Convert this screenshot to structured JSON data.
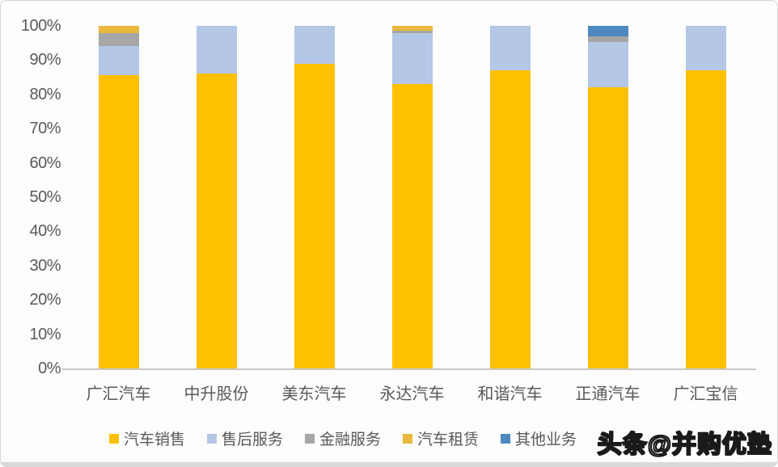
{
  "watermark": "头条@并购优塾",
  "chart_data": {
    "type": "bar",
    "stacked": true,
    "percent_stacked": true,
    "title": "",
    "xlabel": "",
    "ylabel": "",
    "ylim": [
      0,
      100
    ],
    "grid": false,
    "legend_position": "bottom",
    "axis_line_color": "#c7c7c7",
    "label_color": "#595959",
    "categories": [
      "广汇汽车",
      "中升股份",
      "美东汽车",
      "永达汽车",
      "和谐汽车",
      "正通汽车",
      "广汇宝信"
    ],
    "y_ticks": [
      "0%",
      "10%",
      "20%",
      "30%",
      "40%",
      "50%",
      "60%",
      "70%",
      "80%",
      "90%",
      "100%"
    ],
    "series": [
      {
        "name": "汽车销售",
        "color": "#FFC000",
        "values": [
          85.5,
          86,
          89,
          83,
          87,
          82,
          87
        ]
      },
      {
        "name": "售后服务",
        "color": "#B4C7E7",
        "values": [
          8.5,
          14,
          11,
          15,
          13,
          13.3,
          13
        ]
      },
      {
        "name": "金融服务",
        "color": "#A6A6A6",
        "values": [
          4,
          0,
          0,
          0.5,
          0,
          1.7,
          0
        ]
      },
      {
        "name": "汽车租赁",
        "color": "#E8B93E",
        "values": [
          2,
          0,
          0,
          1.5,
          0,
          0,
          0
        ]
      },
      {
        "name": "其他业务",
        "color": "#4D88BF",
        "values": [
          0,
          0,
          0,
          0,
          0,
          3,
          0
        ]
      }
    ]
  }
}
